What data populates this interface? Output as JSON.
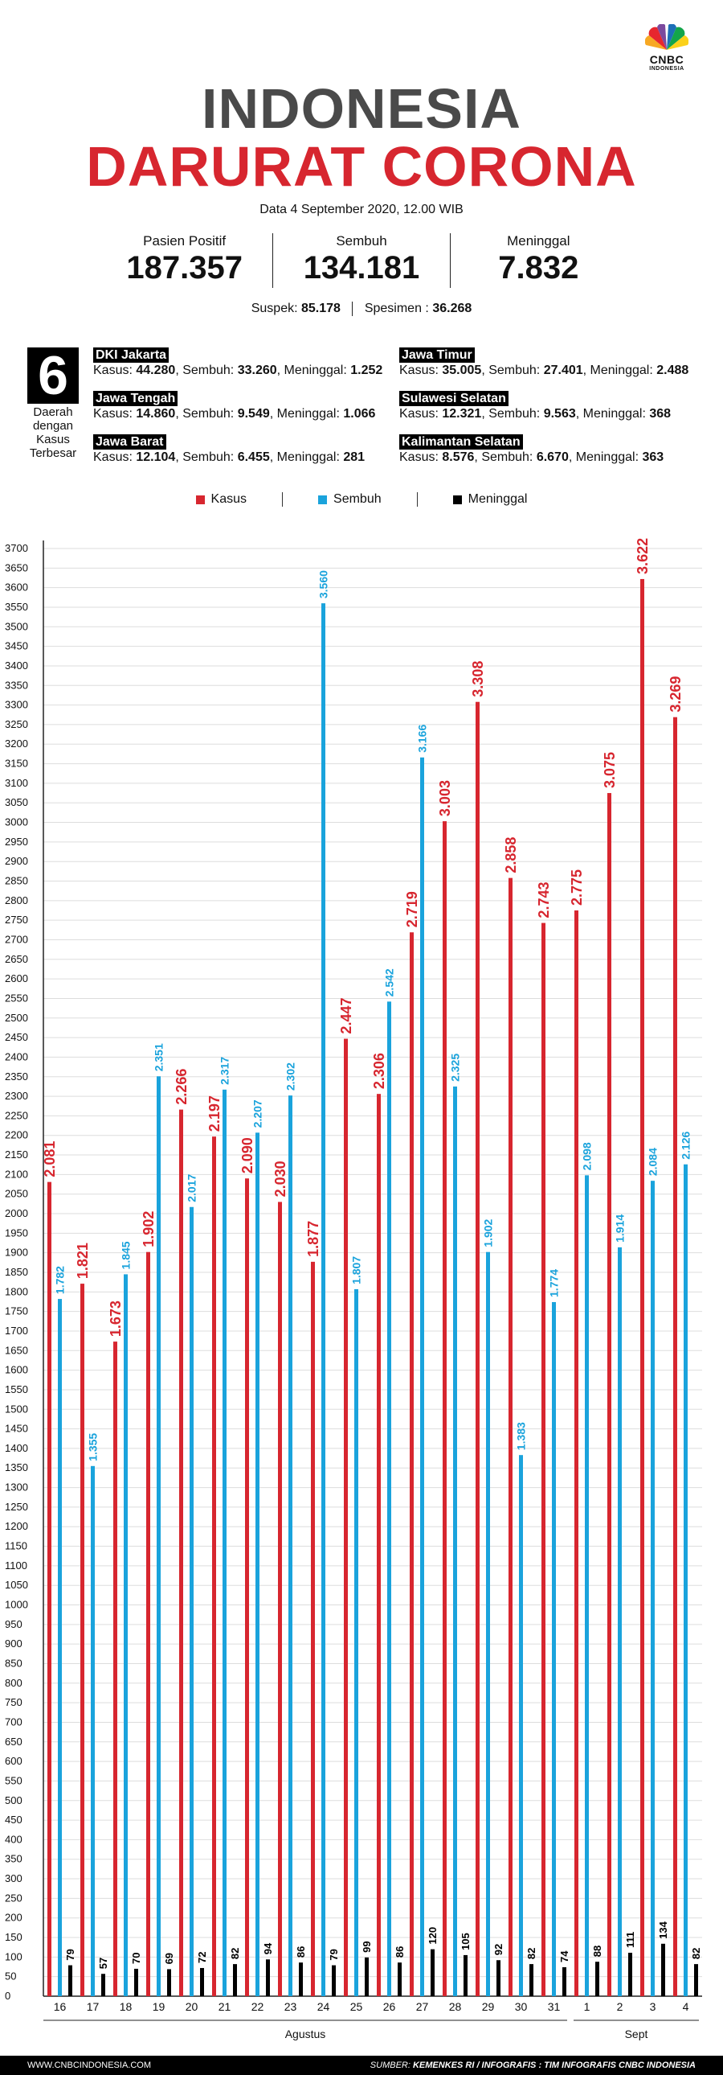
{
  "brand": {
    "name": "CNBC",
    "sub": "INDONESIA"
  },
  "title": {
    "line1": "INDONESIA",
    "line2": "DARURAT CORONA"
  },
  "dateline": "Data 4 September 2020, 12.00 WIB",
  "stats": [
    {
      "label": "Pasien Positif",
      "value": "187.357"
    },
    {
      "label": "Sembuh",
      "value": "134.181"
    },
    {
      "label": "Meninggal",
      "value": "7.832"
    }
  ],
  "extra": {
    "suspek_label": "Suspek:",
    "suspek_value": "85.178",
    "spesimen_label": "Spesimen :",
    "spesimen_value": "36.268"
  },
  "regions_box": {
    "number": "6",
    "caption_lines": [
      "Daerah",
      "dengan",
      "Kasus",
      "Terbesar"
    ]
  },
  "regions": [
    {
      "name": "DKI Jakarta",
      "kasus": "44.280",
      "sembuh": "33.260",
      "meninggal": "1.252"
    },
    {
      "name": "Jawa Tengah",
      "kasus": "14.860",
      "sembuh": "9.549",
      "meninggal": "1.066"
    },
    {
      "name": "Jawa Barat",
      "kasus": "12.104",
      "sembuh": "6.455",
      "meninggal": "281"
    },
    {
      "name": "Jawa Timur",
      "kasus": "35.005",
      "sembuh": "27.401",
      "meninggal": "2.488"
    },
    {
      "name": "Sulawesi Selatan",
      "kasus": "12.321",
      "sembuh": "9.563",
      "meninggal": "368"
    },
    {
      "name": "Kalimantan Selatan",
      "kasus": "8.576",
      "sembuh": "6.670",
      "meninggal": "363"
    }
  ],
  "region_labels": {
    "kasus": "Kasus:",
    "sembuh": "Sembuh:",
    "meninggal": "Meninggal:"
  },
  "colors": {
    "kasus": "#d7262f",
    "sembuh": "#1aa3dc",
    "meninggal": "#000000",
    "title_gray": "#4a4a4a"
  },
  "chart_data": {
    "type": "bar",
    "ylim": [
      0,
      3700
    ],
    "ytick_step": 50,
    "grid": true,
    "categories": [
      "16",
      "17",
      "18",
      "19",
      "20",
      "21",
      "22",
      "23",
      "24",
      "25",
      "26",
      "27",
      "28",
      "29",
      "30",
      "31",
      "1",
      "2",
      "3",
      "4"
    ],
    "groups": [
      {
        "label": "Agustus",
        "from": 0,
        "to": 15
      },
      {
        "label": "Sept",
        "from": 16,
        "to": 19
      }
    ],
    "series": [
      {
        "name": "Kasus",
        "values": [
          2081,
          1821,
          1673,
          1902,
          2266,
          2197,
          2090,
          2030,
          1877,
          2447,
          2306,
          2719,
          3003,
          3308,
          2858,
          2743,
          2775,
          3075,
          3622,
          3269
        ],
        "labels": [
          "2.081",
          "1.821",
          "1.673",
          "1.902",
          "2.266",
          "2.197",
          "2.090",
          "2.030",
          "1.877",
          "2.447",
          "2.306",
          "2.719",
          "3.003",
          "3.308",
          "2.858",
          "2.743",
          "2.775",
          "3.075",
          "3.622",
          "3.269"
        ]
      },
      {
        "name": "Sembuh",
        "values": [
          1782,
          1355,
          1845,
          2351,
          2017,
          2317,
          2207,
          2302,
          3560,
          1807,
          2542,
          3166,
          2325,
          1902,
          1383,
          1774,
          2098,
          1914,
          2084,
          2126
        ],
        "labels": [
          "1.782",
          "1.355",
          "1.845",
          "2.351",
          "2.017",
          "2.317",
          "2.207",
          "2.302",
          "3.560",
          "1.807",
          "2.542",
          "3.166",
          "2.325",
          "1.902",
          "1.383",
          "1.774",
          "2.098",
          "1.914",
          "2.084",
          "2.126"
        ]
      },
      {
        "name": "Meninggal",
        "values": [
          79,
          57,
          70,
          69,
          72,
          82,
          94,
          86,
          79,
          99,
          86,
          120,
          105,
          92,
          82,
          74,
          88,
          111,
          134,
          82
        ],
        "labels": [
          "79",
          "57",
          "70",
          "69",
          "72",
          "82",
          "94",
          "86",
          "79",
          "99",
          "86",
          "120",
          "105",
          "92",
          "82",
          "74",
          "88",
          "111",
          "134",
          "82"
        ]
      }
    ]
  },
  "footer": {
    "website": "WWW.CNBCINDONESIA.COM",
    "source_prefix": "SUMBER:",
    "source": "KEMENKES RI / INFOGRAFIS : TIM INFOGRAFIS CNBC INDONESIA"
  }
}
